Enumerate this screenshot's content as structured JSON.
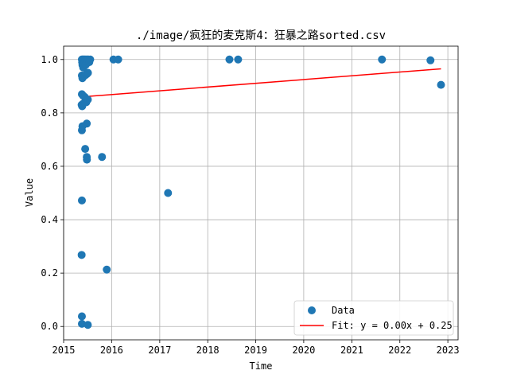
{
  "chart_data": {
    "type": "scatter",
    "title": "./image/疯狂的麦克斯4：狂暴之路sorted.csv",
    "xlabel": "Time",
    "ylabel": "Value",
    "xlim": [
      "2015-01-01",
      "2023-03-20"
    ],
    "ylim": [
      -0.05,
      1.05
    ],
    "x_ticks": [
      "2015",
      "2016",
      "2017",
      "2018",
      "2019",
      "2020",
      "2021",
      "2022",
      "2023"
    ],
    "y_ticks": [
      "0.0",
      "0.2",
      "0.4",
      "0.6",
      "0.8",
      "1.0"
    ],
    "grid": true,
    "legend_position": "lower-right",
    "series": [
      {
        "name": "Data",
        "kind": "scatter",
        "color": "#1f77b4",
        "points": [
          {
            "x": "2015-05-20",
            "y": 1.0
          },
          {
            "x": "2015-05-22",
            "y": 0.99
          },
          {
            "x": "2015-05-24",
            "y": 0.98
          },
          {
            "x": "2015-05-26",
            "y": 1.0
          },
          {
            "x": "2015-05-28",
            "y": 0.995
          },
          {
            "x": "2015-05-30",
            "y": 0.97
          },
          {
            "x": "2015-06-01",
            "y": 1.0
          },
          {
            "x": "2015-06-04",
            "y": 0.985
          },
          {
            "x": "2015-06-07",
            "y": 1.0
          },
          {
            "x": "2015-06-10",
            "y": 0.99
          },
          {
            "x": "2015-06-14",
            "y": 1.0
          },
          {
            "x": "2015-06-18",
            "y": 0.98
          },
          {
            "x": "2015-06-22",
            "y": 1.0
          },
          {
            "x": "2015-06-26",
            "y": 0.995
          },
          {
            "x": "2015-07-01",
            "y": 1.0
          },
          {
            "x": "2015-07-08",
            "y": 1.0
          },
          {
            "x": "2015-07-15",
            "y": 0.99
          },
          {
            "x": "2015-07-22",
            "y": 1.0
          },
          {
            "x": "2015-05-20",
            "y": 0.94
          },
          {
            "x": "2015-05-24",
            "y": 0.93
          },
          {
            "x": "2015-06-12",
            "y": 0.94
          },
          {
            "x": "2015-06-25",
            "y": 0.945
          },
          {
            "x": "2015-07-05",
            "y": 0.95
          },
          {
            "x": "2015-05-20",
            "y": 0.87
          },
          {
            "x": "2015-05-28",
            "y": 0.865
          },
          {
            "x": "2015-06-10",
            "y": 0.86
          },
          {
            "x": "2015-06-22",
            "y": 0.84
          },
          {
            "x": "2015-07-04",
            "y": 0.85
          },
          {
            "x": "2015-05-18",
            "y": 0.83
          },
          {
            "x": "2015-05-22",
            "y": 0.825
          },
          {
            "x": "2015-05-30",
            "y": 0.835
          },
          {
            "x": "2015-06-26",
            "y": 0.76
          },
          {
            "x": "2015-05-24",
            "y": 0.75
          },
          {
            "x": "2015-05-20",
            "y": 0.735
          },
          {
            "x": "2015-06-14",
            "y": 0.665
          },
          {
            "x": "2015-06-26",
            "y": 0.635
          },
          {
            "x": "2015-06-27",
            "y": 0.625
          },
          {
            "x": "2015-10-20",
            "y": 0.635
          },
          {
            "x": "2015-05-20",
            "y": 0.472
          },
          {
            "x": "2015-05-18",
            "y": 0.268
          },
          {
            "x": "2015-11-25",
            "y": 0.213
          },
          {
            "x": "2015-05-20",
            "y": 0.038
          },
          {
            "x": "2015-05-20",
            "y": 0.01
          },
          {
            "x": "2015-07-04",
            "y": 0.006
          },
          {
            "x": "2016-01-15",
            "y": 1.0
          },
          {
            "x": "2016-02-20",
            "y": 1.0
          },
          {
            "x": "2017-03-05",
            "y": 0.5
          },
          {
            "x": "2018-06-15",
            "y": 1.0
          },
          {
            "x": "2018-08-20",
            "y": 1.0
          },
          {
            "x": "2021-08-18",
            "y": 1.0
          },
          {
            "x": "2022-08-22",
            "y": 0.997
          },
          {
            "x": "2022-11-10",
            "y": 0.905
          }
        ]
      },
      {
        "name": "Fit: y = 0.00x + 0.25",
        "kind": "line",
        "color": "#ff0000",
        "points": [
          {
            "x": "2015-05-18",
            "y": 0.86
          },
          {
            "x": "2022-11-10",
            "y": 0.965
          }
        ]
      }
    ]
  }
}
